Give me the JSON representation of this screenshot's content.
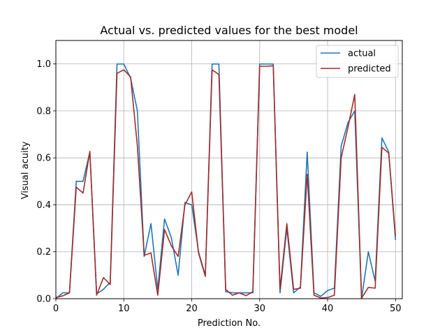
{
  "chart_data": {
    "type": "line",
    "title": "Actual vs. predicted values for the best model",
    "xlabel": "Prediction No.",
    "ylabel": "Visual acuity",
    "xlim": [
      0,
      51
    ],
    "ylim": [
      0,
      1.1
    ],
    "xticks": [
      0,
      10,
      20,
      30,
      40,
      50
    ],
    "yticks": [
      0.0,
      0.2,
      0.4,
      0.6,
      0.8,
      1.0
    ],
    "grid": true,
    "legend_position": "top-right",
    "x": [
      0,
      1,
      2,
      3,
      4,
      5,
      6,
      7,
      8,
      9,
      10,
      11,
      12,
      13,
      14,
      15,
      16,
      17,
      18,
      19,
      20,
      21,
      22,
      23,
      24,
      25,
      26,
      27,
      28,
      29,
      30,
      31,
      32,
      33,
      34,
      35,
      36,
      37,
      38,
      39,
      40,
      41,
      42,
      43,
      44,
      45,
      46,
      47,
      48,
      49,
      50
    ],
    "series": [
      {
        "name": "actual",
        "color": "#1f77b4",
        "values": [
          0.0,
          0.025,
          0.025,
          0.5,
          0.5,
          0.625,
          0.02,
          0.04,
          0.07,
          1.0,
          1.0,
          0.94,
          0.8,
          0.18,
          0.32,
          0.04,
          0.34,
          0.26,
          0.1,
          0.41,
          0.4,
          0.2,
          0.1,
          1.0,
          1.0,
          0.03,
          0.025,
          0.025,
          0.025,
          0.025,
          1.0,
          1.0,
          1.0,
          0.025,
          0.3,
          0.025,
          0.05,
          0.625,
          0.025,
          0.01,
          0.035,
          0.045,
          0.65,
          0.75,
          0.8,
          0.0,
          0.2,
          0.075,
          0.685,
          0.625,
          0.25
        ]
      },
      {
        "name": "predicted",
        "color": "#a52a2a",
        "values": [
          0.005,
          0.012,
          0.025,
          0.475,
          0.45,
          0.628,
          0.015,
          0.09,
          0.06,
          0.96,
          0.975,
          0.945,
          0.65,
          0.185,
          0.195,
          0.015,
          0.295,
          0.225,
          0.18,
          0.4,
          0.455,
          0.195,
          0.095,
          0.975,
          0.955,
          0.04,
          0.015,
          0.025,
          0.013,
          0.03,
          0.99,
          0.99,
          0.992,
          0.04,
          0.32,
          0.04,
          0.045,
          0.53,
          0.015,
          0.003,
          0.005,
          0.015,
          0.6,
          0.73,
          0.87,
          0.002,
          0.048,
          0.045,
          0.645,
          0.62,
          0.265
        ]
      }
    ]
  }
}
